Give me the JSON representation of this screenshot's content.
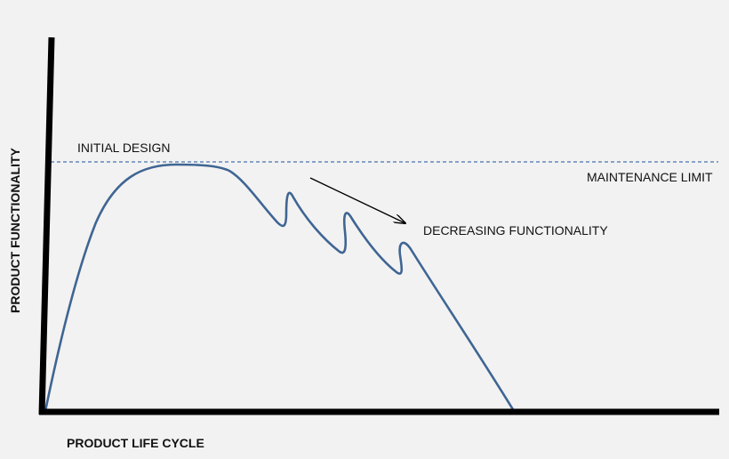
{
  "diagram": {
    "x_axis_label": "PRODUCT LIFE CYCLE",
    "y_axis_label": "PRODUCT FUNCTIONALITY",
    "initial_design_label": "INITIAL DESIGN",
    "maintenance_limit_label": "MAINTENANCE LIMIT",
    "trend_label": "DECREASING FUNCTIONALITY",
    "colors": {
      "background": "#f2f2f2",
      "axis": "#000000",
      "curve": "#3f6593",
      "limit_line": "#4a72b0",
      "arrow": "#000000",
      "text": "#111111"
    }
  }
}
